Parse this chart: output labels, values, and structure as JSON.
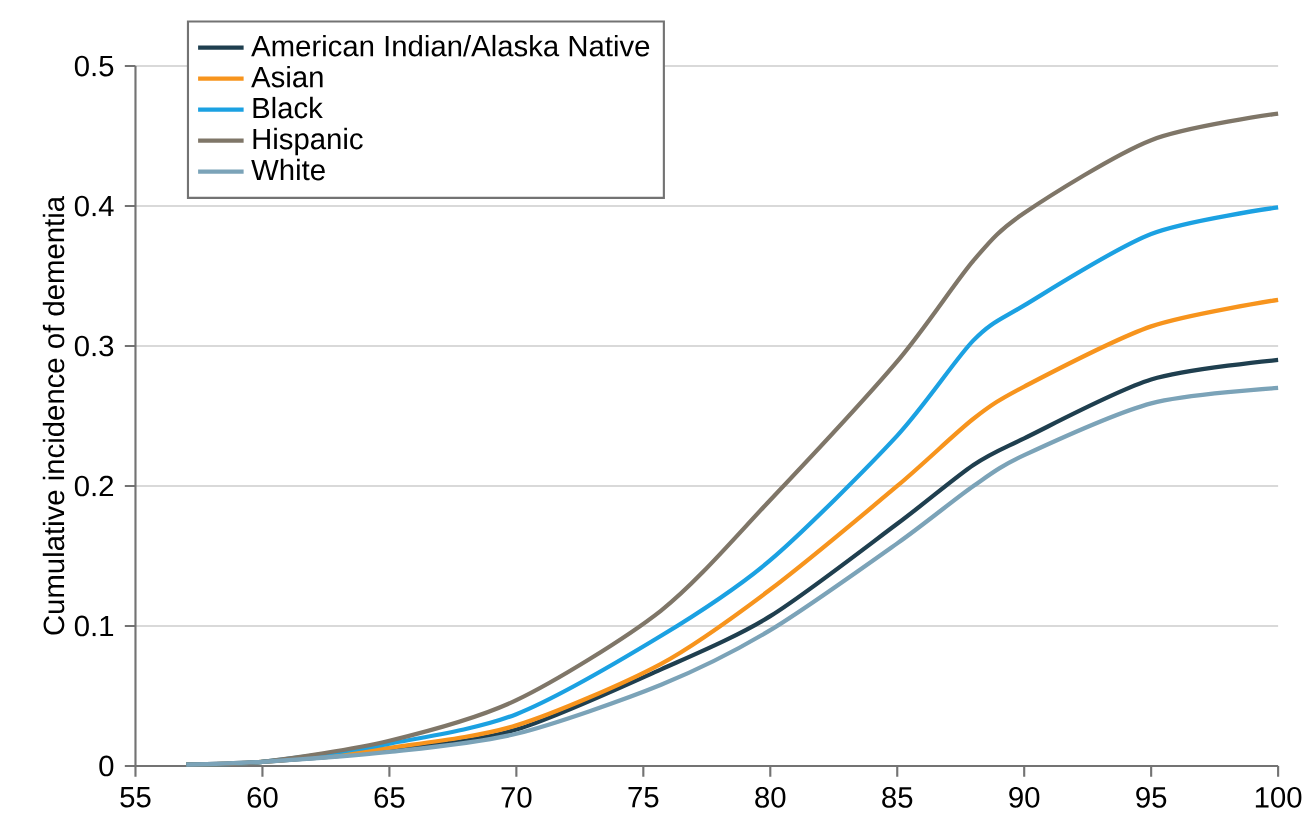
{
  "chart_data": {
    "type": "line",
    "ylabel": "Cumulative incidence of dementia",
    "x": [
      57,
      60,
      65,
      70,
      75.7,
      80,
      85,
      88,
      90,
      95,
      100
    ],
    "series": [
      {
        "name": "American Indian/Alaska Native",
        "color": "#1f3f4f",
        "values": [
          0.001,
          0.003,
          0.011,
          0.026,
          0.069,
          0.107,
          0.173,
          0.215,
          0.234,
          0.276,
          0.29
        ]
      },
      {
        "name": "Asian",
        "color": "#f7941d",
        "values": [
          0.001,
          0.003,
          0.013,
          0.029,
          0.073,
          0.126,
          0.2,
          0.248,
          0.271,
          0.314,
          0.333
        ]
      },
      {
        "name": "Black",
        "color": "#1ba1e2",
        "values": [
          0.001,
          0.003,
          0.016,
          0.037,
          0.093,
          0.147,
          0.236,
          0.304,
          0.329,
          0.38,
          0.399
        ]
      },
      {
        "name": "Hispanic",
        "color": "#7f7668",
        "values": [
          0.001,
          0.003,
          0.018,
          0.047,
          0.111,
          0.19,
          0.289,
          0.361,
          0.395,
          0.447,
          0.466
        ]
      },
      {
        "name": "White",
        "color": "#7ba3b8",
        "values": [
          0.001,
          0.003,
          0.01,
          0.023,
          0.058,
          0.097,
          0.159,
          0.2,
          0.222,
          0.259,
          0.27
        ]
      }
    ],
    "xlim": [
      55,
      100
    ],
    "ylim": [
      0,
      0.5
    ],
    "xticks": [
      55,
      60,
      65,
      70,
      75,
      80,
      85,
      90,
      95,
      100
    ],
    "yticks": [
      0,
      0.1,
      0.2,
      0.3,
      0.4,
      0.5
    ],
    "grid": "y",
    "legend": "top left"
  }
}
